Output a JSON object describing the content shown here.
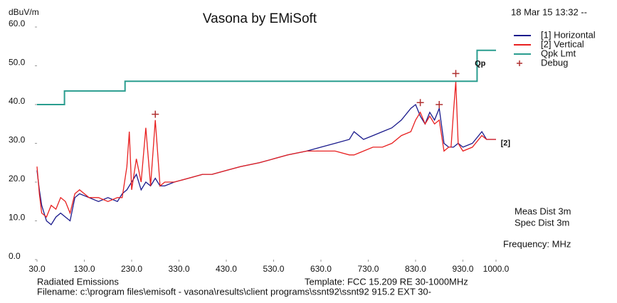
{
  "chart_data": {
    "type": "line",
    "title": "Vasona by EMiSoft",
    "ylabel": "dBuV/m",
    "date": "18 Mar 15 13:32 --",
    "xlim": [
      30,
      1000
    ],
    "ylim": [
      0,
      60
    ],
    "xticks": [
      {
        "value": 30,
        "label": "30.0"
      },
      {
        "value": 130,
        "label": "130.0"
      },
      {
        "value": 230,
        "label": "230.0"
      },
      {
        "value": 330,
        "label": "330.0"
      },
      {
        "value": 430,
        "label": "430.0"
      },
      {
        "value": 530,
        "label": "530.0"
      },
      {
        "value": 630,
        "label": "630.0"
      },
      {
        "value": 730,
        "label": "730.0"
      },
      {
        "value": 830,
        "label": "830.0"
      },
      {
        "value": 930,
        "label": "930.0"
      },
      {
        "value": 1000,
        "label": "1000.0"
      }
    ],
    "yticks": [
      {
        "value": 0,
        "label": "0.0"
      },
      {
        "value": 10,
        "label": "10.0"
      },
      {
        "value": 20,
        "label": "20.0"
      },
      {
        "value": 30,
        "label": "30.0"
      },
      {
        "value": 40,
        "label": "40.0"
      },
      {
        "value": 50,
        "label": "50.0"
      },
      {
        "value": 60,
        "label": "60.0"
      }
    ],
    "series": [
      {
        "name": "[1] Horizontal",
        "color": "#1a1a8c",
        "x": [
          30,
          35,
          40,
          50,
          60,
          70,
          80,
          90,
          100,
          110,
          120,
          140,
          160,
          180,
          200,
          210,
          220,
          240,
          250,
          260,
          270,
          280,
          290,
          300,
          320,
          350,
          380,
          400,
          430,
          460,
          500,
          530,
          560,
          600,
          630,
          660,
          690,
          700,
          720,
          740,
          760,
          780,
          800,
          820,
          830,
          840,
          850,
          860,
          870,
          880,
          890,
          900,
          910,
          920,
          930,
          950,
          970,
          980,
          1000
        ],
        "values": [
          23,
          18,
          14,
          10,
          9,
          11,
          12,
          11,
          10,
          16,
          17,
          16,
          15,
          16,
          15,
          17,
          18,
          22,
          18,
          20,
          19,
          21,
          19,
          19,
          20,
          21,
          22,
          22,
          23,
          24,
          25,
          26,
          27,
          28,
          29,
          30,
          31,
          33,
          31,
          32,
          33,
          34,
          36,
          39,
          40,
          37,
          35,
          38,
          36,
          39,
          30,
          29,
          29,
          30,
          29,
          30,
          33,
          31,
          31
        ]
      },
      {
        "name": "[2] Vertical",
        "color": "#e82020",
        "x": [
          30,
          35,
          40,
          50,
          60,
          70,
          80,
          90,
          100,
          110,
          120,
          140,
          160,
          180,
          200,
          210,
          220,
          225,
          230,
          240,
          250,
          260,
          270,
          280,
          290,
          300,
          320,
          350,
          380,
          400,
          430,
          460,
          500,
          530,
          560,
          600,
          630,
          660,
          690,
          700,
          720,
          740,
          760,
          780,
          800,
          820,
          830,
          840,
          850,
          860,
          870,
          880,
          890,
          900,
          905,
          910,
          915,
          920,
          930,
          950,
          970,
          980,
          1000
        ],
        "values": [
          24,
          17,
          12,
          11,
          14,
          13,
          16,
          15,
          12,
          17,
          18,
          16,
          16,
          15,
          16,
          16,
          24,
          33,
          18,
          26,
          20,
          34,
          19,
          36,
          19,
          20,
          20,
          21,
          22,
          22,
          23,
          24,
          25,
          26,
          27,
          28,
          28,
          28,
          27,
          27,
          28,
          29,
          29,
          30,
          32,
          33,
          36,
          38,
          35,
          37,
          35,
          36,
          28,
          29,
          29,
          38,
          46,
          30,
          28,
          29,
          32,
          31,
          31
        ]
      },
      {
        "name": "Qpk Lmt",
        "color": "#2a9d8f",
        "x": [
          30,
          88,
          88,
          216,
          216,
          960,
          960,
          1000
        ],
        "values": [
          40,
          40,
          43.5,
          43.5,
          46,
          46,
          54,
          54
        ]
      },
      {
        "name": "Debug",
        "color": "#b03030",
        "marker": "+",
        "x": [
          280,
          840,
          880,
          915
        ],
        "values": [
          37.5,
          40.5,
          40,
          48
        ]
      }
    ],
    "annotations": [
      {
        "text": "Qp",
        "x": 955,
        "y": 50.5
      },
      {
        "text": "[2]",
        "x": 1010,
        "y": 30
      }
    ],
    "info": [
      "Meas Dist 3m",
      "Spec Dist 3m",
      "Frequency: MHz"
    ],
    "footer": {
      "left": "Radiated Emissions",
      "template": "Template: FCC 15.209 RE 30-1000MHz",
      "filename": "Filename: c:\\program files\\emisoft - vasona\\results\\client programs\\ssnt92\\ssnt92 915.2 EXT 30-"
    }
  }
}
